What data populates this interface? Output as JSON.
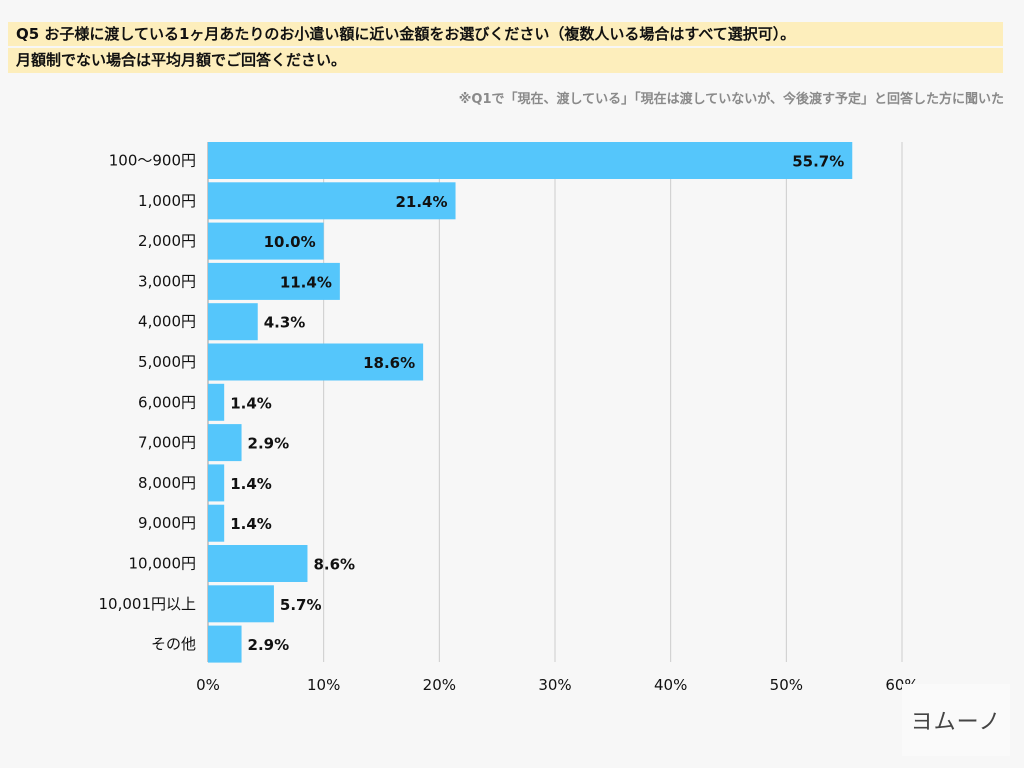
{
  "title_line1": "Q5 お子様に渡している1ヶ月あたりのお小遣い額に近い金額をお選びください（複数人いる場合はすべて選択可）。",
  "title_line2": "月額制でない場合は平均月額でご回答ください。",
  "note": "※Q1で「現在、渡している」「現在は渡していないが、今後渡す予定」と回答した方に聞いた",
  "logo_text": "ヨムーノ",
  "colors": {
    "bar": "#55c6fb",
    "title_band": "#fdeebc",
    "grid": "#cccccc"
  },
  "chart_data": {
    "type": "bar",
    "orientation": "horizontal",
    "categories": [
      "100〜900円",
      "1,000円",
      "2,000円",
      "3,000円",
      "4,000円",
      "5,000円",
      "6,000円",
      "7,000円",
      "8,000円",
      "9,000円",
      "10,000円",
      "10,001円以上",
      "その他"
    ],
    "values": [
      55.7,
      21.4,
      10.0,
      11.4,
      4.3,
      18.6,
      1.4,
      2.9,
      1.4,
      1.4,
      8.6,
      5.7,
      2.9
    ],
    "data_labels": [
      "55.7%",
      "21.4%",
      "10.0%",
      "11.4%",
      "4.3%",
      "18.6%",
      "1.4%",
      "2.9%",
      "1.4%",
      "1.4%",
      "8.6%",
      "5.7%",
      "2.9%"
    ],
    "xlim": [
      0,
      60
    ],
    "x_ticks": [
      "0%",
      "10%",
      "20%",
      "30%",
      "40%",
      "50%",
      "60%"
    ],
    "grid": "vertical",
    "title": "",
    "xlabel": "",
    "ylabel": ""
  }
}
